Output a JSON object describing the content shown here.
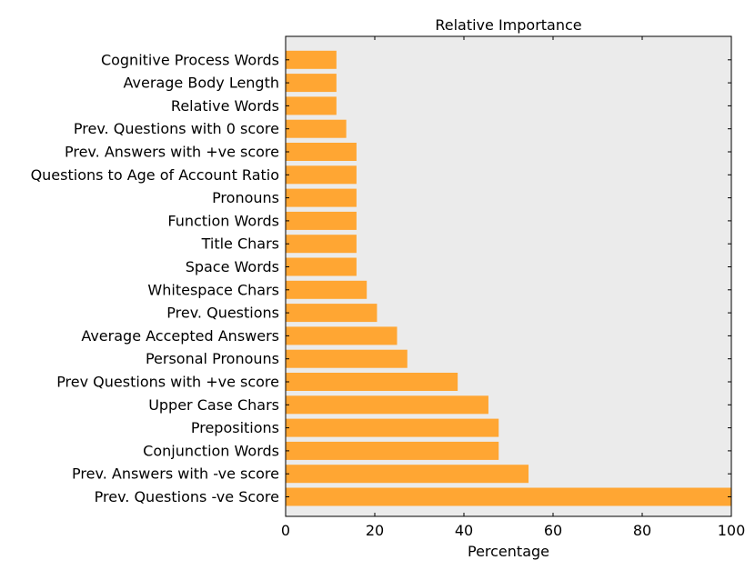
{
  "chart_data": {
    "type": "bar",
    "orientation": "horizontal",
    "title": "Relative Importance",
    "xlabel": "Percentage",
    "ylabel": "",
    "xlim": [
      0,
      100
    ],
    "xticks": [
      "0",
      "20",
      "40",
      "60",
      "80",
      "100"
    ],
    "categories": [
      "Prev. Questions -ve Score",
      "Prev. Answers with -ve score",
      "Conjunction Words",
      "Prepositions",
      "Upper Case Chars",
      "Prev Questions with +ve score",
      "Personal Pronouns",
      "Average Accepted Answers",
      "Prev. Questions",
      "Whitespace Chars",
      "Space Words",
      "Title Chars",
      "Function Words",
      "Pronouns",
      "Questions to Age of Account Ratio",
      "Prev. Answers with +ve score",
      "Prev. Questions with 0 score",
      "Relative Words",
      "Average Body Length",
      "Cognitive Process Words"
    ],
    "values": [
      100,
      54.5,
      47.8,
      47.8,
      45.5,
      38.6,
      27.3,
      25.0,
      20.5,
      18.2,
      15.9,
      15.9,
      15.9,
      15.9,
      15.9,
      15.9,
      13.6,
      11.4,
      11.4,
      11.4
    ],
    "bar_color": "#ffa633",
    "plot_background": "#ebebeb",
    "grid": false
  }
}
